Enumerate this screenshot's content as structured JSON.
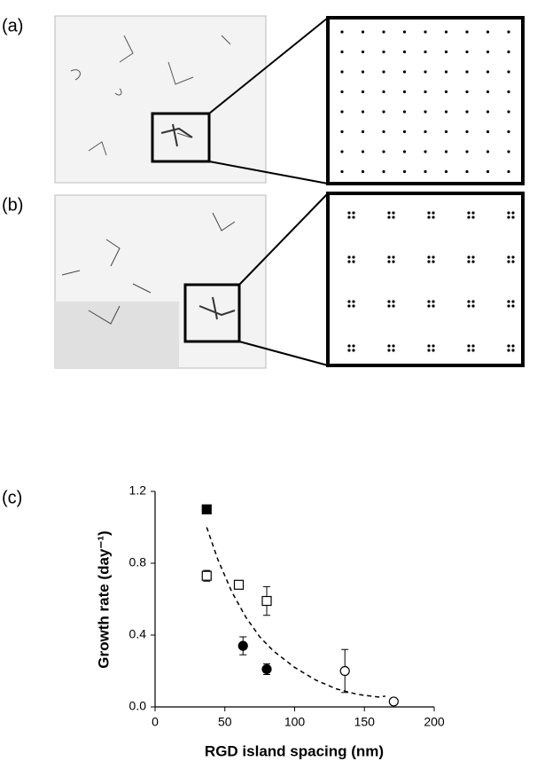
{
  "panels": {
    "a": "(a)",
    "b": "(b)",
    "c": "(c)"
  },
  "chart_data": {
    "type": "scatter",
    "xlabel": "RGD island spacing (nm)",
    "ylabel": "Growth rate (day⁻¹)",
    "xlim": [
      0,
      200
    ],
    "xticks": [
      0,
      50,
      100,
      150,
      200
    ],
    "ylim": [
      0,
      1.2
    ],
    "yticks": [
      {
        "value": 0,
        "label": "0.0"
      },
      0.4,
      0.8,
      1.2
    ],
    "series": [
      {
        "marker": "square",
        "fill": "#000000",
        "color": "#000000",
        "x": [
          37
        ],
        "values": [
          1.1
        ],
        "errors": [
          0
        ]
      },
      {
        "marker": "square",
        "fill": "#ffffff",
        "color": "#000000",
        "x": [
          37,
          60,
          80
        ],
        "values": [
          0.73,
          0.68,
          0.59
        ],
        "errors": [
          0.03,
          0.02,
          0.08
        ]
      },
      {
        "marker": "circle",
        "fill": "#000000",
        "color": "#000000",
        "x": [
          63,
          80
        ],
        "values": [
          0.34,
          0.21
        ],
        "errors": [
          0.05,
          0.03
        ]
      },
      {
        "marker": "circle",
        "fill": "#ffffff",
        "color": "#000000",
        "x": [
          136,
          171
        ],
        "values": [
          0.2,
          0.03
        ],
        "errors": [
          0.12,
          0
        ]
      }
    ],
    "fit": {
      "dashed": true,
      "color": "#000000",
      "x": [
        37,
        45,
        55,
        65,
        75,
        85,
        100,
        115,
        130,
        145,
        160,
        165
      ],
      "values": [
        1.0,
        0.82,
        0.64,
        0.5,
        0.39,
        0.31,
        0.22,
        0.15,
        0.1,
        0.07,
        0.055,
        0.06
      ]
    }
  }
}
